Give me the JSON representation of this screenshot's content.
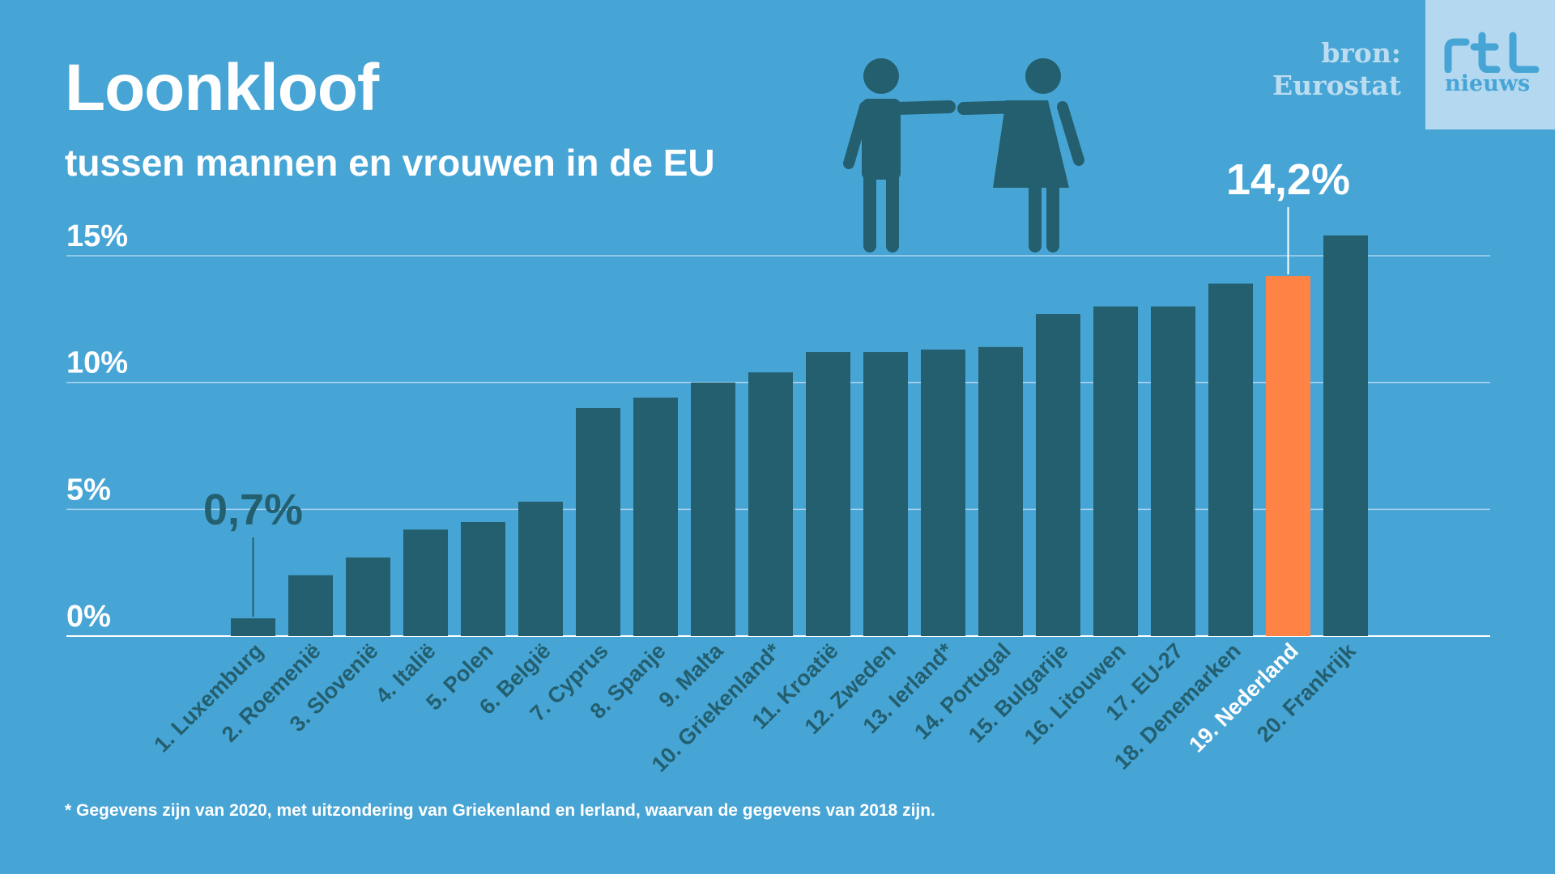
{
  "header": {
    "title": "Loonkloof",
    "subtitle": "tussen mannen en vrouwen in de EU"
  },
  "source": {
    "label": "bron:",
    "name": "Eurostat"
  },
  "logo": {
    "text": "nieuws",
    "icon": "rtl-logo-icon"
  },
  "icons": {
    "people": "man-woman-handshake-icon"
  },
  "footnote": "* Gegevens zijn van 2020, met uitzondering van Griekenland en Ierland, waarvan de gegevens van 2018 zijn.",
  "colors": {
    "background": "#47a5d6",
    "bar": "#235f6e",
    "highlight": "#ff8344"
  },
  "chart_data": {
    "type": "bar",
    "categories": [
      "1. Luxemburg",
      "2. Roemenië",
      "3. Slovenië",
      "4. Italië",
      "5. Polen",
      "6. België",
      "7. Cyprus",
      "8. Spanje",
      "9. Malta",
      "10. Griekenland*",
      "11. Kroatië",
      "12. Zweden",
      "13. Ierland*",
      "14. Portugal",
      "15. Bulgarije",
      "16. Litouwen",
      "17. EU-27",
      "18. Denemarken",
      "19. Nederland",
      "20. Frankrijk"
    ],
    "values": [
      0.7,
      2.4,
      3.1,
      4.2,
      4.5,
      5.3,
      9.0,
      9.4,
      10.0,
      10.4,
      11.2,
      11.2,
      11.3,
      11.4,
      12.7,
      13.0,
      13.0,
      13.9,
      14.2,
      15.8
    ],
    "ylim": [
      0,
      15
    ],
    "yticks": [
      "0%",
      "5%",
      "10%",
      "15%"
    ],
    "highlight_index": 18,
    "annotations": [
      {
        "index": 0,
        "text": "0,7%"
      },
      {
        "index": 18,
        "text": "14,2%"
      }
    ],
    "grid": true
  }
}
